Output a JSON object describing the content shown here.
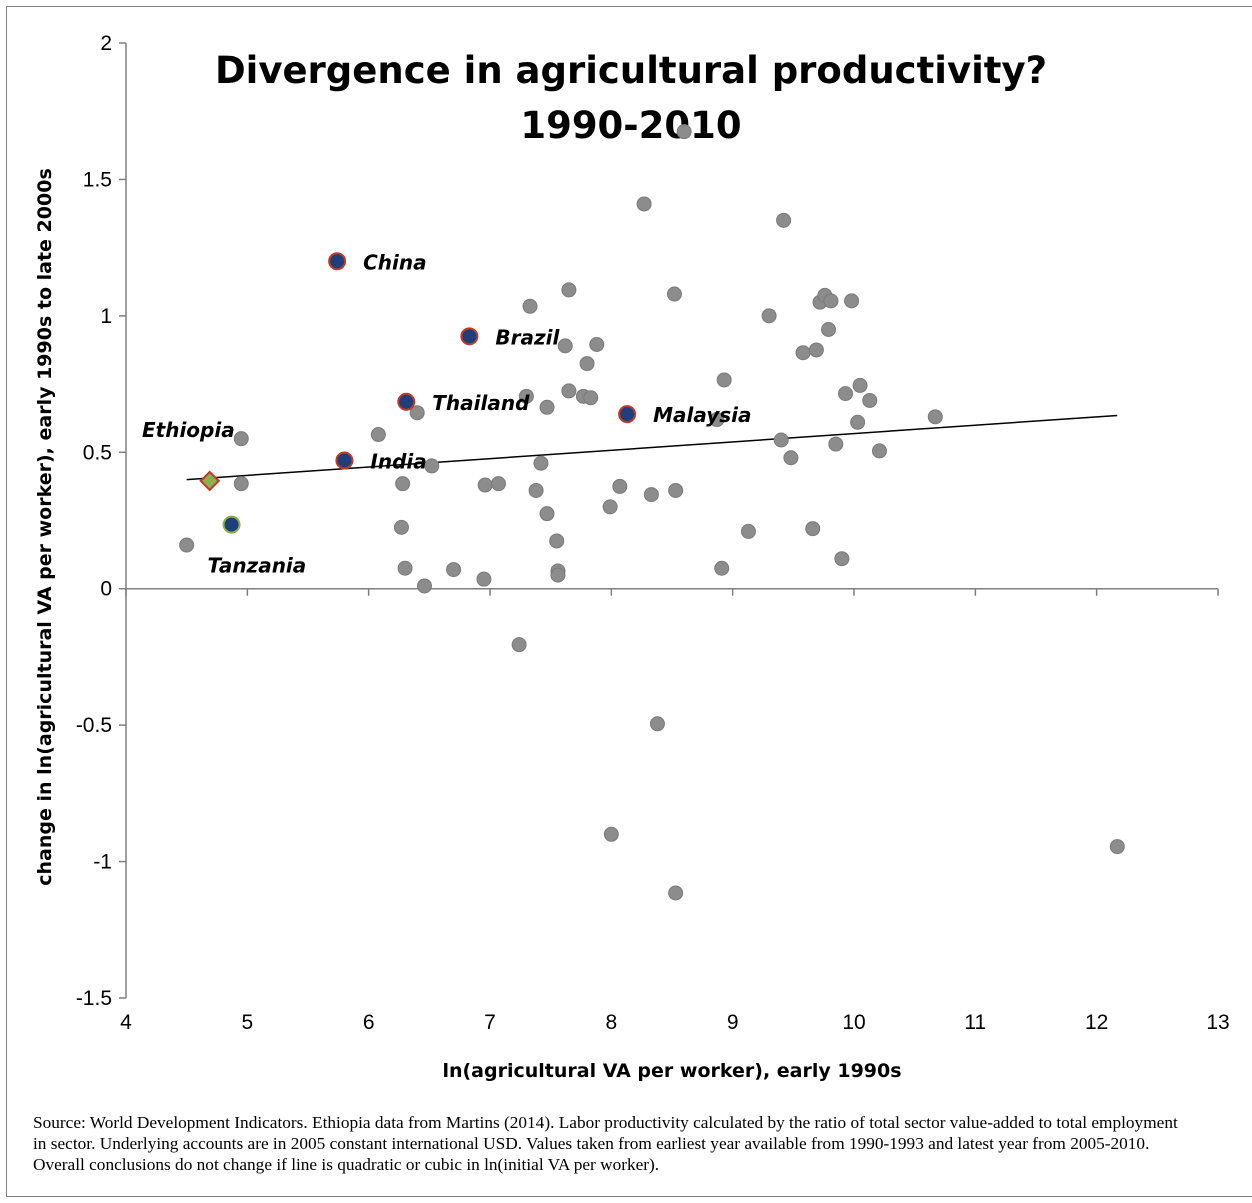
{
  "chart_data": {
    "type": "scatter",
    "title_lines": [
      "Divergence in agricultural productivity?",
      "1990-2010"
    ],
    "xlabel": "ln(agricultural VA per worker), early 1990s",
    "ylabel": "change in ln(agricultural VA per worker), early 1990s to late 2000s",
    "xlim": [
      4,
      13
    ],
    "ylim": [
      -1.5,
      2
    ],
    "xticks": [
      "4",
      "5",
      "6",
      "7",
      "8",
      "9",
      "10",
      "11",
      "12",
      "13"
    ],
    "yticks": [
      "2",
      "1.5",
      "1",
      "0.5",
      "0",
      "-0.5",
      "-1",
      "-1.5"
    ],
    "trendline": {
      "x": [
        4.5,
        12.17
      ],
      "y": [
        0.4,
        0.635
      ]
    },
    "highlighted": [
      {
        "label": "China",
        "x": 5.74,
        "y": 1.2,
        "marker": "circle",
        "fill": "#1f3f7a",
        "stroke": "#c0392b",
        "label_pos": "right"
      },
      {
        "label": "Brazil",
        "x": 6.83,
        "y": 0.925,
        "marker": "circle",
        "fill": "#1f3f7a",
        "stroke": "#c0392b",
        "label_pos": "right"
      },
      {
        "label": "Thailand",
        "x": 6.31,
        "y": 0.685,
        "marker": "circle",
        "fill": "#1f3f7a",
        "stroke": "#c0392b",
        "label_pos": "right"
      },
      {
        "label": "Malaysia",
        "x": 8.13,
        "y": 0.64,
        "marker": "circle",
        "fill": "#1f3f7a",
        "stroke": "#c0392b",
        "label_pos": "right"
      },
      {
        "label": "India",
        "x": 5.8,
        "y": 0.47,
        "marker": "circle",
        "fill": "#1f3f7a",
        "stroke": "#c0392b",
        "label_pos": "right"
      },
      {
        "label": "Ethiopia",
        "x": 4.69,
        "y": 0.395,
        "marker": "diamond",
        "fill": "#8db04a",
        "stroke": "#c0392b",
        "label_pos": "above-left"
      },
      {
        "label": "Tanzania",
        "x": 4.87,
        "y": 0.235,
        "marker": "circle",
        "fill": "#1f3f7a",
        "stroke": "#8db04a",
        "label_pos": "below"
      }
    ],
    "points": [
      [
        4.5,
        0.16
      ],
      [
        4.95,
        0.55
      ],
      [
        4.95,
        0.385
      ],
      [
        6.08,
        0.565
      ],
      [
        6.28,
        0.385
      ],
      [
        6.27,
        0.225
      ],
      [
        6.3,
        0.075
      ],
      [
        6.4,
        0.645
      ],
      [
        6.46,
        0.01
      ],
      [
        6.52,
        0.45
      ],
      [
        6.7,
        0.07
      ],
      [
        6.95,
        0.035
      ],
      [
        6.96,
        0.38
      ],
      [
        7.07,
        0.385
      ],
      [
        7.24,
        -0.205
      ],
      [
        7.3,
        0.705
      ],
      [
        7.33,
        1.035
      ],
      [
        7.38,
        0.36
      ],
      [
        7.42,
        0.46
      ],
      [
        7.47,
        0.665
      ],
      [
        7.47,
        0.275
      ],
      [
        7.55,
        0.175
      ],
      [
        7.56,
        0.065
      ],
      [
        7.56,
        0.05
      ],
      [
        7.62,
        0.89
      ],
      [
        7.65,
        1.095
      ],
      [
        7.65,
        0.725
      ],
      [
        7.77,
        0.705
      ],
      [
        7.8,
        0.825
      ],
      [
        7.83,
        0.7
      ],
      [
        7.88,
        0.895
      ],
      [
        7.99,
        0.3
      ],
      [
        8.0,
        -0.9
      ],
      [
        8.07,
        0.375
      ],
      [
        8.27,
        1.41
      ],
      [
        8.33,
        0.345
      ],
      [
        8.38,
        -0.495
      ],
      [
        8.52,
        1.08
      ],
      [
        8.53,
        0.36
      ],
      [
        8.53,
        -1.115
      ],
      [
        8.6,
        1.675
      ],
      [
        8.87,
        0.62
      ],
      [
        8.91,
        0.075
      ],
      [
        8.93,
        0.765
      ],
      [
        9.13,
        0.21
      ],
      [
        9.3,
        1.0
      ],
      [
        9.4,
        0.545
      ],
      [
        9.42,
        1.35
      ],
      [
        9.48,
        0.48
      ],
      [
        9.58,
        0.865
      ],
      [
        9.66,
        0.22
      ],
      [
        9.69,
        0.875
      ],
      [
        9.72,
        1.05
      ],
      [
        9.76,
        1.075
      ],
      [
        9.79,
        0.95
      ],
      [
        9.81,
        1.055
      ],
      [
        9.85,
        0.53
      ],
      [
        9.9,
        0.11
      ],
      [
        9.93,
        0.715
      ],
      [
        9.98,
        1.055
      ],
      [
        10.03,
        0.61
      ],
      [
        10.05,
        0.745
      ],
      [
        10.13,
        0.69
      ],
      [
        10.21,
        0.505
      ],
      [
        10.67,
        0.63
      ],
      [
        12.17,
        -0.945
      ]
    ]
  },
  "source_lines": [
    "Source: World Development Indicators. Ethiopia data from Martins (2014). Labor productivity calculated by the ratio of total sector value-added to total employment",
    "in sector. Underlying accounts are in 2005 constant international USD. Values taken from earliest year available from 1990-1993 and latest year from 2005-2010.",
    "Overall conclusions do not change if line is quadratic or cubic in ln(initial VA per worker)."
  ]
}
